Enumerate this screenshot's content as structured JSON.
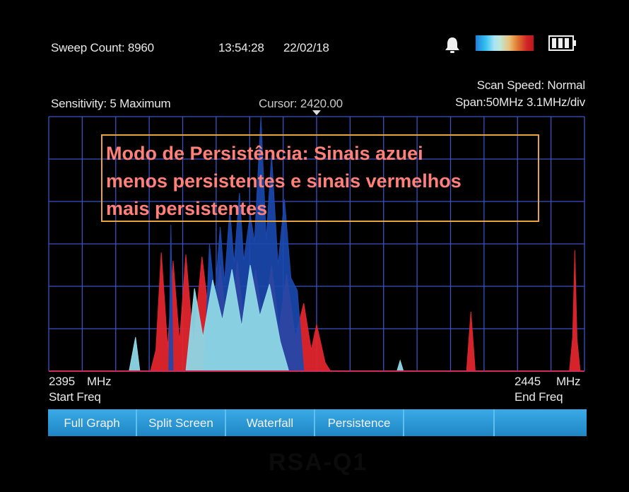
{
  "status_bar": {
    "sweep_count": "Sweep Count: 8960",
    "time": "13:54:28",
    "date": "22/02/18",
    "bell_icon": "bell-icon",
    "colorbar_icon": "persistence-colorbar",
    "battery_icon": "battery-icon"
  },
  "info": {
    "scan_speed": "Scan Speed: Normal",
    "sensitivity": "Sensitivity: 5 Maximum",
    "cursor": "Cursor: 2420.00",
    "span": "Span:50MHz 3.1MHz/div"
  },
  "freq": {
    "start_value": "2395",
    "start_unit": "MHz",
    "start_label": "Start Freq",
    "end_value": "2445",
    "end_unit": "MHz",
    "end_label": "End Freq"
  },
  "annotation": {
    "lines": [
      "Modo de Persistência: Sinais azuei",
      "menos persistentes e sinais vermelhos",
      "mais persistentes"
    ]
  },
  "menu": {
    "items": [
      "Full Graph",
      "Split Screen",
      "Waterfall",
      "Persistence",
      "",
      ""
    ]
  },
  "watermark": "RSA-Q1",
  "colors": {
    "grid": "#3a52c4",
    "high_persistence": "#e0252e",
    "low_persistence": "#1a49b0",
    "mid_persistence": "#8ed7e6"
  },
  "chart_data": {
    "type": "area",
    "x_range_mhz": [
      2395,
      2445
    ],
    "cursor_mhz": 2420.0,
    "grid": true,
    "series": [
      {
        "persistence": "high",
        "color": "#e0252e",
        "points": [
          [
            2404.5,
            0
          ],
          [
            2405,
            1.0
          ],
          [
            2405.5,
            5.6
          ],
          [
            2406.1,
            1.1
          ],
          [
            2406.6,
            5.2
          ],
          [
            2407.2,
            1.4
          ],
          [
            2407.8,
            5.5
          ],
          [
            2408.5,
            1.2
          ],
          [
            2409.3,
            5.4
          ],
          [
            2410.2,
            1.6
          ],
          [
            2411,
            5.0
          ],
          [
            2411.8,
            1.3
          ],
          [
            2412.6,
            5.2
          ],
          [
            2413.4,
            1.5
          ],
          [
            2414.3,
            4.8
          ],
          [
            2415,
            2.2
          ],
          [
            2415.8,
            5.0
          ],
          [
            2416.5,
            2.0
          ],
          [
            2417.2,
            4.6
          ],
          [
            2418,
            1.6
          ],
          [
            2418.8,
            3.2
          ],
          [
            2419.5,
            1.0
          ],
          [
            2420,
            2.2
          ],
          [
            2420.8,
            0.4
          ],
          [
            2421.3,
            0
          ]
        ]
      },
      {
        "persistence": "high",
        "color": "#e0252e",
        "points": [
          [
            2434.0,
            0
          ],
          [
            2434.4,
            2.8
          ],
          [
            2434.8,
            0
          ]
        ]
      },
      {
        "persistence": "high",
        "color": "#e0252e",
        "points": [
          [
            2443.6,
            0
          ],
          [
            2443.9,
            1.6
          ],
          [
            2444.1,
            5.7
          ],
          [
            2444.3,
            1.5
          ],
          [
            2444.6,
            0
          ]
        ]
      },
      {
        "persistence": "low",
        "color": "#1a49b0",
        "points": [
          [
            2406.2,
            0
          ],
          [
            2406.4,
            6.9
          ],
          [
            2406.6,
            0
          ],
          [
            2409.5,
            0
          ],
          [
            2410.0,
            6.0
          ],
          [
            2410.5,
            3.5
          ],
          [
            2411.0,
            6.8
          ],
          [
            2411.4,
            4.2
          ],
          [
            2411.9,
            7.6
          ],
          [
            2412.3,
            5.1
          ],
          [
            2412.8,
            8.4
          ],
          [
            2413.2,
            5.2
          ],
          [
            2413.8,
            7.4
          ],
          [
            2414.2,
            6.1
          ],
          [
            2414.8,
            12.0
          ],
          [
            2415.3,
            6.2
          ],
          [
            2415.8,
            10.2
          ],
          [
            2416.4,
            5.0
          ],
          [
            2417.0,
            8.1
          ],
          [
            2417.6,
            4.4
          ],
          [
            2418.2,
            3.8
          ],
          [
            2418.8,
            0
          ]
        ]
      },
      {
        "persistence": "mid",
        "color": "#8ed7e6",
        "points": [
          [
            2402.5,
            0
          ],
          [
            2403.1,
            1.6
          ],
          [
            2403.5,
            0
          ],
          [
            2407.8,
            0
          ],
          [
            2408.6,
            3.9
          ],
          [
            2409.4,
            1.6
          ],
          [
            2410.3,
            4.3
          ],
          [
            2411.2,
            2.4
          ],
          [
            2412.1,
            4.8
          ],
          [
            2413.0,
            2.1
          ],
          [
            2413.8,
            5.0
          ],
          [
            2414.7,
            2.6
          ],
          [
            2415.6,
            4.1
          ],
          [
            2416.6,
            1.4
          ],
          [
            2417.4,
            0
          ],
          [
            2427.5,
            0
          ],
          [
            2427.8,
            0.5
          ],
          [
            2428.1,
            0
          ]
        ]
      }
    ]
  }
}
